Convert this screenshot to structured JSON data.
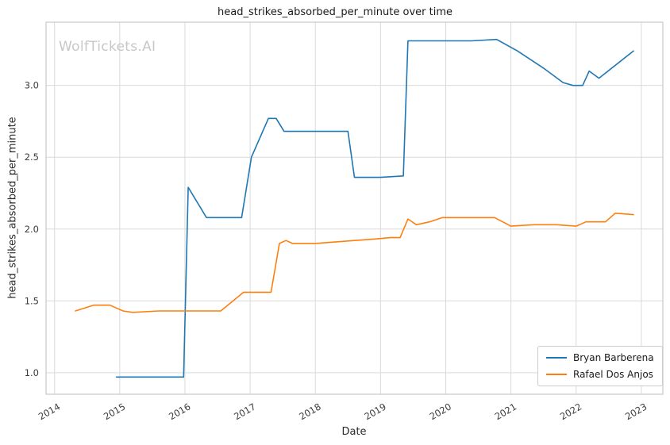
{
  "watermark": "WolfTickets.AI",
  "chart_data": {
    "type": "line",
    "title": "head_strikes_absorbed_per_minute over time",
    "xlabel": "Date",
    "ylabel": "head_strikes_absorbed_per_minute",
    "xlim": [
      2013.87,
      2023.33
    ],
    "ylim": [
      0.85,
      3.44
    ],
    "xticks": [
      2014,
      2015,
      2016,
      2017,
      2018,
      2019,
      2020,
      2021,
      2022,
      2023
    ],
    "yticks": [
      1.0,
      1.5,
      2.0,
      2.5,
      3.0
    ],
    "grid": true,
    "legend_position": "lower right",
    "grid_color": "#d9d9d9",
    "spine_color": "#c9c9c9",
    "series": [
      {
        "name": "Bryan Barberena",
        "color": "#1f77b4",
        "points": [
          [
            2014.95,
            0.97
          ],
          [
            2015.98,
            0.97
          ],
          [
            2016.05,
            2.29
          ],
          [
            2016.33,
            2.08
          ],
          [
            2016.87,
            2.08
          ],
          [
            2017.02,
            2.5
          ],
          [
            2017.28,
            2.77
          ],
          [
            2017.4,
            2.77
          ],
          [
            2017.52,
            2.68
          ],
          [
            2018.0,
            2.68
          ],
          [
            2018.5,
            2.68
          ],
          [
            2018.6,
            2.36
          ],
          [
            2019.0,
            2.36
          ],
          [
            2019.35,
            2.37
          ],
          [
            2019.42,
            3.31
          ],
          [
            2019.9,
            3.31
          ],
          [
            2020.4,
            3.31
          ],
          [
            2020.78,
            3.32
          ],
          [
            2021.1,
            3.24
          ],
          [
            2021.5,
            3.12
          ],
          [
            2021.8,
            3.02
          ],
          [
            2021.95,
            3.0
          ],
          [
            2022.1,
            3.0
          ],
          [
            2022.2,
            3.1
          ],
          [
            2022.35,
            3.05
          ],
          [
            2022.88,
            3.24
          ]
        ]
      },
      {
        "name": "Rafael Dos Anjos",
        "color": "#ff7f0e",
        "points": [
          [
            2014.32,
            1.43
          ],
          [
            2014.6,
            1.47
          ],
          [
            2014.85,
            1.47
          ],
          [
            2015.05,
            1.43
          ],
          [
            2015.2,
            1.42
          ],
          [
            2015.6,
            1.43
          ],
          [
            2015.98,
            1.43
          ],
          [
            2016.3,
            1.43
          ],
          [
            2016.55,
            1.43
          ],
          [
            2016.9,
            1.56
          ],
          [
            2017.1,
            1.56
          ],
          [
            2017.32,
            1.56
          ],
          [
            2017.45,
            1.9
          ],
          [
            2017.55,
            1.92
          ],
          [
            2017.65,
            1.9
          ],
          [
            2018.0,
            1.9
          ],
          [
            2018.3,
            1.91
          ],
          [
            2018.6,
            1.92
          ],
          [
            2018.9,
            1.93
          ],
          [
            2019.15,
            1.94
          ],
          [
            2019.3,
            1.94
          ],
          [
            2019.42,
            2.07
          ],
          [
            2019.55,
            2.03
          ],
          [
            2019.75,
            2.05
          ],
          [
            2019.95,
            2.08
          ],
          [
            2020.3,
            2.08
          ],
          [
            2020.75,
            2.08
          ],
          [
            2021.0,
            2.02
          ],
          [
            2021.35,
            2.03
          ],
          [
            2021.7,
            2.03
          ],
          [
            2022.0,
            2.02
          ],
          [
            2022.15,
            2.05
          ],
          [
            2022.45,
            2.05
          ],
          [
            2022.6,
            2.11
          ],
          [
            2022.88,
            2.1
          ]
        ]
      }
    ]
  }
}
